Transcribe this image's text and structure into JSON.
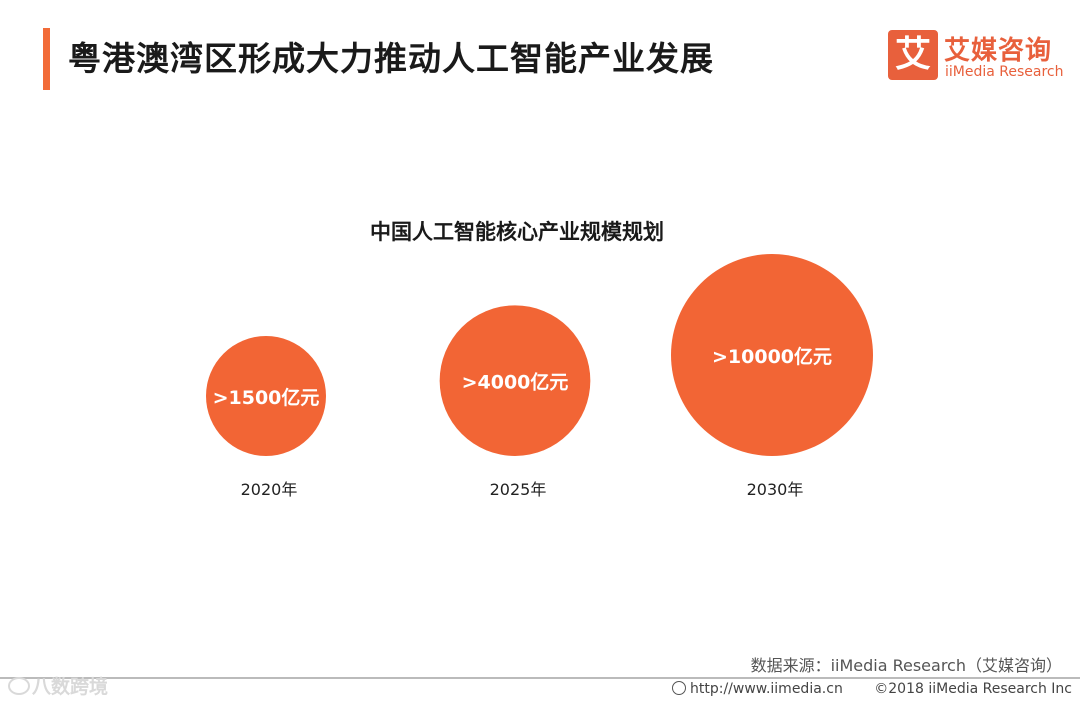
{
  "header": {
    "title": "粤港澳湾区形成大力推动人工智能产业发展",
    "accent_color": "#f26b38"
  },
  "logo": {
    "mark": "艾",
    "name_cn": "艾媒咨询",
    "name_en": "iiMedia Research",
    "color": "#e8603c"
  },
  "chart_data": {
    "type": "bubble",
    "title": "中国人工智能核心产业规模规划",
    "categories": [
      "2020年",
      "2025年",
      "2030年"
    ],
    "labels": [
      ">1500亿元",
      ">4000亿元",
      ">10000亿元"
    ],
    "values": [
      1500,
      4000,
      10000
    ],
    "unit": "亿元",
    "color": "#f26535"
  },
  "footer": {
    "source": "数据来源：iiMedia Research（艾媒咨询）",
    "url": "http://www.iimedia.cn",
    "copyright": "©2018  iiMedia Research  Inc"
  },
  "watermark": {
    "text": "八数跨境",
    "icon": "chat-bubble-icon"
  }
}
